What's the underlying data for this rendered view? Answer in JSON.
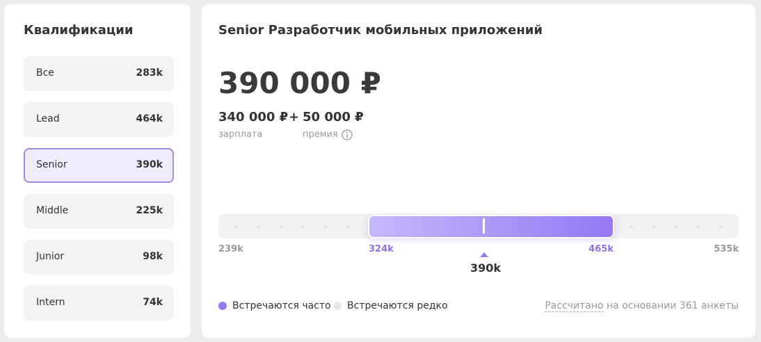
{
  "sidebar": {
    "title": "Квалификации",
    "items": [
      {
        "label": "Все",
        "value": "283k"
      },
      {
        "label": "Lead",
        "value": "464k"
      },
      {
        "label": "Senior",
        "value": "390k"
      },
      {
        "label": "Middle",
        "value": "225k"
      },
      {
        "label": "Junior",
        "value": "98k"
      },
      {
        "label": "Intern",
        "value": "74k"
      }
    ]
  },
  "main": {
    "title": "Senior Разработчик мобильных приложений",
    "total": "390 000 ₽",
    "salary": {
      "amount": "340 000 ₽",
      "label": "зарплата"
    },
    "plus": "+",
    "bonus": {
      "amount": "50 000 ₽",
      "label": "премия"
    },
    "range": {
      "min": "239k",
      "low": "324k",
      "high": "465k",
      "max": "535k",
      "median": "390k"
    },
    "legend": [
      "Встречаются часто",
      "Встречаются редко"
    ],
    "note_link": "Рассчитано",
    "note": "на основании 361 анкеты"
  }
}
